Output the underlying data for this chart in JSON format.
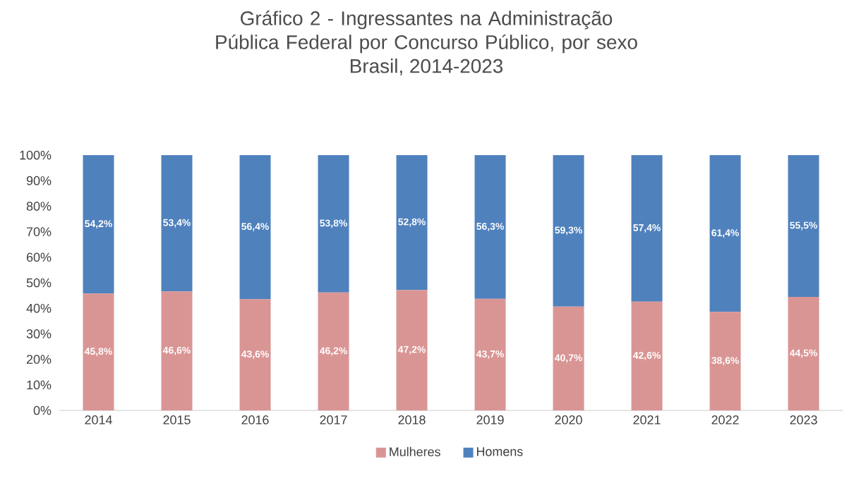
{
  "chart_data": {
    "type": "bar",
    "stacked": true,
    "title": "Gráfico 2 - Ingressantes na Administração Pública Federal por Concurso Público, por sexo",
    "subtitle": "Brasil, 2014-2023",
    "categories": [
      "2014",
      "2015",
      "2016",
      "2017",
      "2018",
      "2019",
      "2020",
      "2021",
      "2022",
      "2023"
    ],
    "series": [
      {
        "name": "Mulheres",
        "color": "#d99594",
        "values": [
          45.8,
          46.6,
          43.6,
          46.2,
          47.2,
          43.7,
          40.7,
          42.6,
          38.6,
          44.5
        ],
        "value_labels": [
          "45,8%",
          "46,6%",
          "43,6%",
          "46,2%",
          "47,2%",
          "43,7%",
          "40,7%",
          "42,6%",
          "38,6%",
          "44,5%"
        ]
      },
      {
        "name": "Homens",
        "color": "#4f81bd",
        "values": [
          54.2,
          53.4,
          56.4,
          53.8,
          52.8,
          56.3,
          59.3,
          57.4,
          61.4,
          55.5
        ],
        "value_labels": [
          "54,2%",
          "53,4%",
          "56,4%",
          "53,8%",
          "52,8%",
          "56,3%",
          "59,3%",
          "57,4%",
          "61,4%",
          "55,5%"
        ]
      }
    ],
    "ylim": [
      0,
      100
    ],
    "yticks": [
      {
        "value": 0,
        "label": "0%"
      },
      {
        "value": 10,
        "label": "10%"
      },
      {
        "value": 20,
        "label": "20%"
      },
      {
        "value": 30,
        "label": "30%"
      },
      {
        "value": 40,
        "label": "40%"
      },
      {
        "value": 50,
        "label": "50%"
      },
      {
        "value": 60,
        "label": "60%"
      },
      {
        "value": 70,
        "label": "70%"
      },
      {
        "value": 80,
        "label": "80%"
      },
      {
        "value": 90,
        "label": "90%"
      },
      {
        "value": 100,
        "label": "100%"
      }
    ],
    "legend": "bottom"
  }
}
